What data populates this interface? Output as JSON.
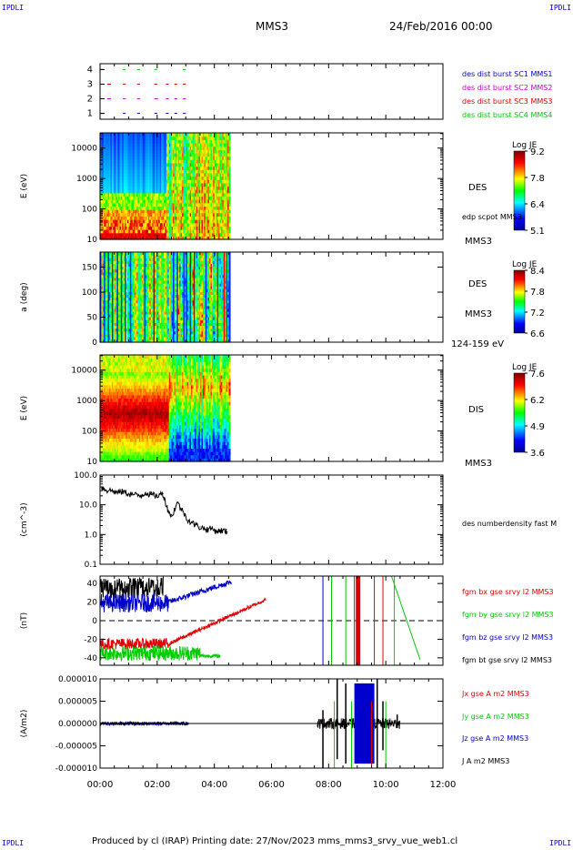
{
  "corners": {
    "tl": "IPDLI",
    "tr": "IPDLI",
    "bl": "IPDLI",
    "br": "IPDLI"
  },
  "header": {
    "spacecraft": "MMS3",
    "date": "24/Feb/2016 00:00"
  },
  "footer": {
    "text": "Produced by cl (IRAP)   Printing date: 27/Nov/2023   mms_mms3_srvy_vue_web1.cl"
  },
  "colors": {
    "red": "#e00000",
    "green": "#00cc00",
    "blue": "#0000cc",
    "magenta": "#cc00cc",
    "black": "#000000"
  },
  "chart_data": [
    {
      "type": "line",
      "panel": "burst availability",
      "y_ticks": [
        "1",
        "2",
        "3",
        "4"
      ],
      "ylim": [
        0.6,
        4.4
      ],
      "series": [
        {
          "name": "des dist burst SC1 MMS1",
          "level": 1,
          "color": "#0000cc",
          "segments": [
            [
              0.0,
              0.25
            ],
            [
              0.8,
              0.9
            ],
            [
              1.3,
              1.4
            ],
            [
              1.9,
              2.0
            ],
            [
              2.3,
              2.4
            ],
            [
              2.6,
              2.7
            ],
            [
              2.9,
              3.0
            ]
          ]
        },
        {
          "name": "des dist burst SC2 MMS2",
          "level": 2,
          "color": "#cc00cc",
          "segments": [
            [
              0.0,
              0.4
            ],
            [
              0.8,
              0.9
            ],
            [
              1.3,
              1.4
            ],
            [
              1.9,
              2.1
            ],
            [
              2.3,
              2.4
            ],
            [
              2.6,
              2.7
            ],
            [
              2.9,
              3.0
            ]
          ]
        },
        {
          "name": "des dist burst SC3 MMS3",
          "level": 3,
          "color": "#e00000",
          "segments": [
            [
              0.0,
              0.4
            ],
            [
              0.8,
              0.9
            ],
            [
              1.3,
              1.4
            ],
            [
              1.9,
              2.0
            ],
            [
              2.3,
              2.4
            ],
            [
              2.6,
              2.7
            ],
            [
              2.9,
              3.0
            ]
          ]
        },
        {
          "name": "des dist burst SC4 MMS4",
          "level": 4,
          "color": "#00cc00",
          "segments": [
            [
              0.0,
              0.25
            ],
            [
              0.8,
              0.9
            ],
            [
              1.3,
              1.4
            ],
            [
              1.9,
              2.0
            ],
            [
              2.9,
              3.0
            ]
          ]
        }
      ]
    },
    {
      "type": "heatmap",
      "panel": "DES energy spectrogram",
      "ylabel": "E (eV)",
      "y_ticks": [
        "10",
        "100",
        "1000",
        "10000"
      ],
      "ylog": [
        1,
        4.5
      ],
      "label": "DES",
      "sc_label": "MMS3",
      "overlay": "edp scpot MMS3",
      "colorbar": {
        "title": "Log JE",
        "ticks": [
          "9.2",
          "7.8",
          "6.4",
          "5.1"
        ],
        "range": [
          5.1,
          9.2
        ]
      },
      "data_extent_hours": [
        0,
        4.55
      ]
    },
    {
      "type": "heatmap",
      "panel": "DES pitch angle",
      "ylabel": "a (deg)",
      "y_ticks": [
        "0",
        "50",
        "100",
        "150"
      ],
      "ylim": [
        0,
        180
      ],
      "label": "DES",
      "sc_label": "MMS3",
      "energy_band": "124-159 eV",
      "colorbar": {
        "title": "Log JE",
        "ticks": [
          "8.4",
          "7.8",
          "7.2",
          "6.6"
        ],
        "range": [
          6.6,
          8.4
        ]
      },
      "data_extent_hours": [
        0,
        4.55
      ]
    },
    {
      "type": "heatmap",
      "panel": "DIS energy spectrogram",
      "ylabel": "E (eV)",
      "y_ticks": [
        "10",
        "100",
        "1000",
        "10000"
      ],
      "ylog": [
        1,
        4.5
      ],
      "label": "DIS",
      "sc_label": "MMS3",
      "colorbar": {
        "title": "Log JE",
        "ticks": [
          "7.6",
          "6.2",
          "4.9",
          "3.6"
        ],
        "range": [
          3.6,
          7.6
        ]
      },
      "data_extent_hours": [
        0,
        4.55
      ]
    },
    {
      "type": "line",
      "panel": "density",
      "ylabel": "(cm^-3)",
      "y_ticks": [
        "0.1",
        "1.0",
        "10.0",
        "100.0"
      ],
      "ylog": [
        -1,
        2
      ],
      "series": [
        {
          "name": "des numberdensity fast M",
          "color": "#000000",
          "x": [
            0.05,
            0.2,
            0.4,
            0.6,
            0.8,
            1.0,
            1.2,
            1.4,
            1.6,
            1.8,
            2.0,
            2.2,
            2.35,
            2.5,
            2.7,
            2.9,
            3.1,
            3.3,
            3.5,
            3.7,
            3.9,
            4.1,
            4.3,
            4.45
          ],
          "y": [
            40,
            32,
            30,
            26,
            28,
            24,
            22,
            20,
            26,
            22,
            20,
            24,
            8,
            4,
            12,
            6,
            3,
            2.2,
            1.8,
            1.5,
            1.6,
            1.3,
            1.4,
            1.2
          ]
        }
      ]
    },
    {
      "type": "line",
      "panel": "magnetic field",
      "ylabel": "(nT)",
      "y_ticks": [
        "-40",
        "-20",
        "0",
        "20",
        "40"
      ],
      "ylim": [
        -48,
        48
      ],
      "series": [
        {
          "name": "fgm bx gse srvy l2 MMS3",
          "color": "#e00000"
        },
        {
          "name": "fgm by gse srvy l2 MMS3",
          "color": "#00cc00"
        },
        {
          "name": "fgm bz gse srvy l2 MMS3",
          "color": "#0000cc"
        },
        {
          "name": "fgm bt gse srvy l2 MMS3",
          "color": "#000000"
        }
      ]
    },
    {
      "type": "line",
      "panel": "current density",
      "ylabel": "(A/m2)",
      "y_ticks": [
        "-0.000010",
        "-0.000005",
        "0.000000",
        "0.000005",
        "0.000010"
      ],
      "ylim": [
        -1e-05,
        1e-05
      ],
      "series": [
        {
          "name": "Jx gse A m2 MMS3",
          "color": "#e00000"
        },
        {
          "name": "Jy gse A m2 MMS3",
          "color": "#00cc00"
        },
        {
          "name": "Jz gse A m2 MMS3",
          "color": "#0000cc"
        },
        {
          "name": "J A m2 MMS3",
          "color": "#000000"
        }
      ]
    }
  ],
  "time_axis": {
    "ticks": [
      "00:00",
      "02:00",
      "04:00",
      "06:00",
      "08:00",
      "10:00",
      "12:00"
    ],
    "range_hours": [
      0,
      12
    ]
  }
}
